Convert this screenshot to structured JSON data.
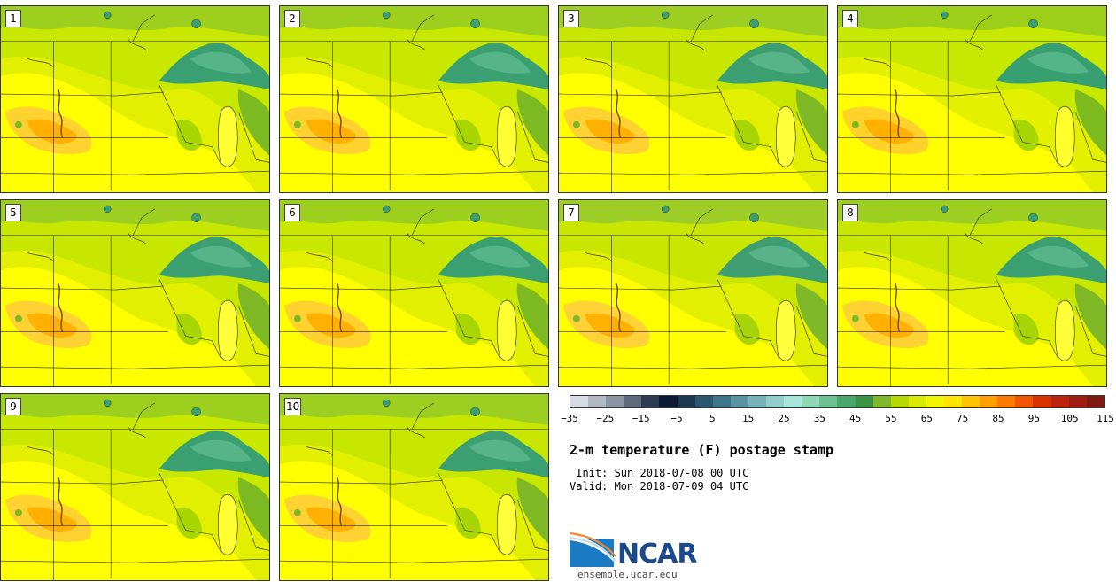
{
  "panels": [
    {
      "label": "1",
      "variant": "warm"
    },
    {
      "label": "2",
      "variant": "warm"
    },
    {
      "label": "3",
      "variant": "mid"
    },
    {
      "label": "4",
      "variant": "hot"
    },
    {
      "label": "5",
      "variant": "mid"
    },
    {
      "label": "6",
      "variant": "warm"
    },
    {
      "label": "7",
      "variant": "cool"
    },
    {
      "label": "8",
      "variant": "mid"
    },
    {
      "label": "9",
      "variant": "warm"
    },
    {
      "label": "10",
      "variant": "mid"
    }
  ],
  "legend": {
    "colors": [
      "#d6dce4",
      "#b3b9c3",
      "#8a94a2",
      "#5f6b7c",
      "#2f3b50",
      "#0d1a33",
      "#1e3852",
      "#2d5670",
      "#3e7589",
      "#5a94a3",
      "#76b2b8",
      "#92cfca",
      "#a8e6dc",
      "#8fd8b5",
      "#6cc391",
      "#4aa76a",
      "#3a9444",
      "#7fb82a",
      "#b7d900",
      "#d9ec00",
      "#f2f500",
      "#ffe600",
      "#ffc400",
      "#ff9f00",
      "#ff7a00",
      "#f15500",
      "#d93400",
      "#bd2410",
      "#9e1c12",
      "#7f1a10"
    ],
    "ticks": [
      "−35",
      "−25",
      "−15",
      "−5",
      "5",
      "15",
      "25",
      "35",
      "45",
      "55",
      "65",
      "75",
      "85",
      "95",
      "105",
      "115"
    ]
  },
  "title": "2-m temperature (F) postage stamp",
  "init": " Init: Sun 2018-07-08 00 UTC",
  "valid": "Valid: Mon 2018-07-09 04 UTC",
  "logo": {
    "text": "NCAR",
    "url": "ensemble.ucar.edu"
  },
  "colors": {
    "base": "#c8e600",
    "lake": "#3f9e72",
    "lake_dark": "#2f8a5e",
    "hot": "#ffff00",
    "hotter": "#ffc400",
    "border": "#2a2a2a"
  }
}
